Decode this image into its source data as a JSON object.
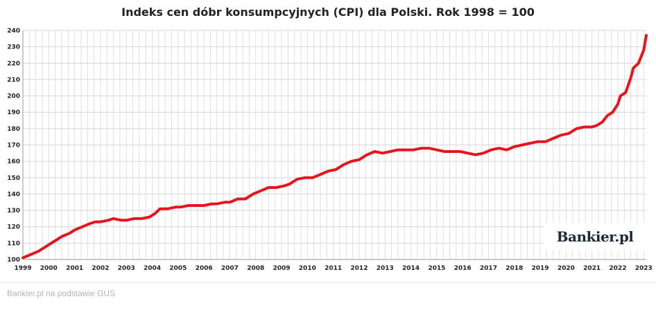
{
  "chart_data": {
    "type": "line",
    "title": "Indeks cen dóbr konsumpcyjnych (CPI) dla Polski. Rok 1998 = 100",
    "xlabel": "",
    "ylabel": "",
    "ylim": [
      100,
      240
    ],
    "y_ticks": [
      100,
      110,
      120,
      130,
      140,
      150,
      160,
      170,
      180,
      190,
      200,
      210,
      220,
      230,
      240
    ],
    "x_ticks": [
      "1999",
      "2000",
      "2001",
      "2002",
      "2003",
      "2004",
      "2005",
      "2006",
      "2007",
      "2008",
      "2009",
      "2010",
      "2011",
      "2012",
      "2013",
      "2014",
      "2015",
      "2016",
      "2017",
      "2018",
      "2019",
      "2020",
      "2021",
      "2022",
      "2023"
    ],
    "xlim": [
      1999,
      2023.1
    ],
    "grid": true,
    "line_color": "#e8141b",
    "series": [
      {
        "x": [
          1999.0,
          1999.3,
          1999.6,
          1999.9,
          2000.2,
          2000.5,
          2000.8,
          2001.0,
          2001.3,
          2001.6,
          2001.8,
          2002.0,
          2002.3,
          2002.5,
          2002.8,
          2003.0,
          2003.3,
          2003.6,
          2003.9,
          2004.1,
          2004.3,
          2004.6,
          2004.9,
          2005.1,
          2005.4,
          2005.7,
          2006.0,
          2006.3,
          2006.5,
          2006.8,
          2007.0,
          2007.3,
          2007.6,
          2007.9,
          2008.2,
          2008.5,
          2008.8,
          2009.1,
          2009.3,
          2009.6,
          2009.9,
          2010.2,
          2010.5,
          2010.8,
          2011.1,
          2011.4,
          2011.7,
          2012.0,
          2012.3,
          2012.6,
          2012.9,
          2013.2,
          2013.5,
          2013.8,
          2014.1,
          2014.4,
          2014.7,
          2015.0,
          2015.3,
          2015.6,
          2015.9,
          2016.2,
          2016.5,
          2016.8,
          2017.1,
          2017.4,
          2017.7,
          2018.0,
          2018.3,
          2018.6,
          2018.9,
          2019.2,
          2019.5,
          2019.8,
          2020.1,
          2020.4,
          2020.7,
          2021.0,
          2021.2,
          2021.4,
          2021.6,
          2021.8,
          2022.0,
          2022.1,
          2022.3,
          2022.5,
          2022.6,
          2022.8,
          2023.0,
          2023.1
        ],
        "y": [
          101,
          103,
          105,
          108,
          111,
          114,
          116,
          118,
          120,
          122,
          123,
          123,
          124,
          125,
          124,
          124,
          125,
          125,
          126,
          128,
          131,
          131,
          132,
          132,
          133,
          133,
          133,
          134,
          134,
          135,
          135,
          137,
          137,
          140,
          142,
          144,
          144,
          145,
          146,
          149,
          150,
          150,
          152,
          154,
          155,
          158,
          160,
          161,
          164,
          166,
          165,
          166,
          167,
          167,
          167,
          168,
          168,
          167,
          166,
          166,
          166,
          165,
          164,
          165,
          167,
          168,
          167,
          169,
          170,
          171,
          172,
          172,
          174,
          176,
          177,
          180,
          181,
          181,
          182,
          184,
          188,
          190,
          195,
          200,
          202,
          211,
          217,
          220,
          228,
          237
        ]
      }
    ]
  },
  "logo": {
    "text": "Bankier.pl"
  },
  "footer": {
    "source": "Bankier.pl na podstawie GUS"
  }
}
